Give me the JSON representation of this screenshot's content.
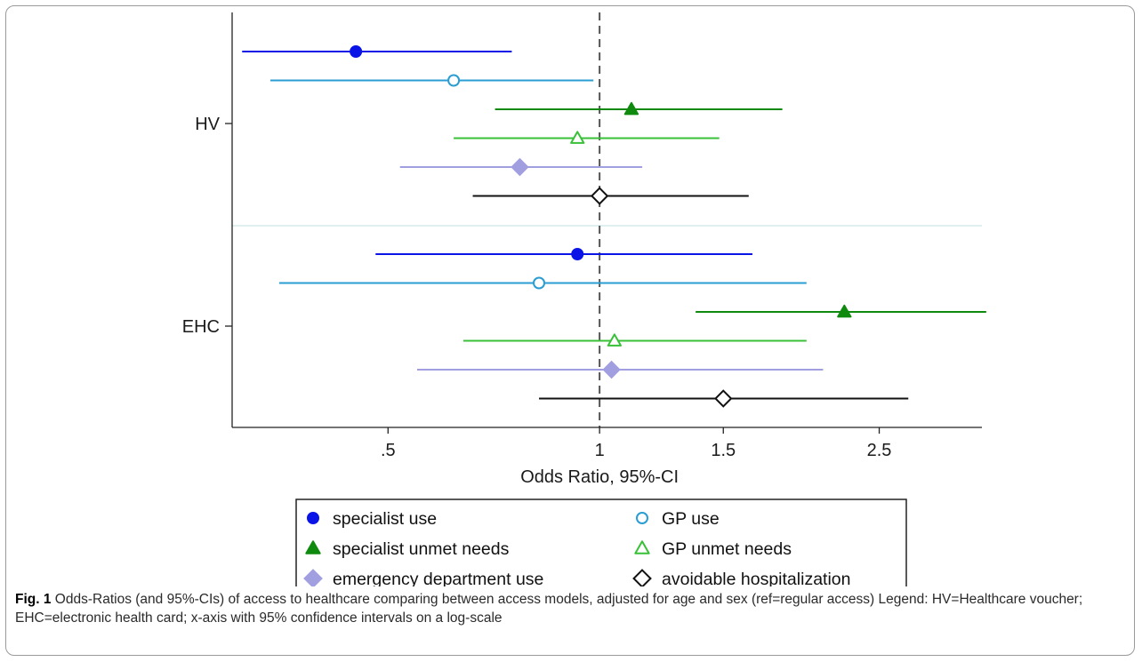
{
  "chart_data": {
    "type": "forest",
    "xlabel": "Odds Ratio, 95%-CI",
    "x_scale": "log",
    "x_ticks": [
      0.5,
      1,
      1.5,
      2.5
    ],
    "x_tick_labels": [
      ".5",
      "1",
      "1.5",
      "2.5"
    ],
    "xlim": [
      0.3,
      3.5
    ],
    "reference_line": 1,
    "groups": [
      "HV",
      "EHC"
    ],
    "series": [
      {
        "name": "specialist use",
        "color": "#0a14e6",
        "marker": "circle-filled",
        "points": [
          {
            "group": "HV",
            "or": 0.45,
            "lo": 0.31,
            "hi": 0.75
          },
          {
            "group": "EHC",
            "or": 0.93,
            "lo": 0.48,
            "hi": 1.65
          }
        ]
      },
      {
        "name": "GP use",
        "color": "#2a9dd2",
        "marker": "circle-open",
        "points": [
          {
            "group": "HV",
            "or": 0.62,
            "lo": 0.34,
            "hi": 0.98
          },
          {
            "group": "EHC",
            "or": 0.82,
            "lo": 0.35,
            "hi": 1.97
          }
        ]
      },
      {
        "name": "specialist unmet needs",
        "color": "#0f8a0f",
        "marker": "triangle-filled",
        "points": [
          {
            "group": "HV",
            "or": 1.11,
            "lo": 0.71,
            "hi": 1.82
          },
          {
            "group": "EHC",
            "or": 2.23,
            "lo": 1.37,
            "hi": 3.55
          }
        ]
      },
      {
        "name": "GP unmet needs",
        "color": "#38c038",
        "marker": "triangle-open",
        "points": [
          {
            "group": "HV",
            "or": 0.93,
            "lo": 0.62,
            "hi": 1.48
          },
          {
            "group": "EHC",
            "or": 1.05,
            "lo": 0.64,
            "hi": 1.97
          }
        ]
      },
      {
        "name": "emergency department use",
        "color": "#a29fe0",
        "marker": "diamond-filled",
        "points": [
          {
            "group": "HV",
            "or": 0.77,
            "lo": 0.52,
            "hi": 1.15
          },
          {
            "group": "EHC",
            "or": 1.04,
            "lo": 0.55,
            "hi": 2.08
          }
        ]
      },
      {
        "name": "avoidable hospitalization",
        "color": "#111111",
        "marker": "diamond-open",
        "points": [
          {
            "group": "HV",
            "or": 1.0,
            "lo": 0.66,
            "hi": 1.63
          },
          {
            "group": "EHC",
            "or": 1.5,
            "lo": 0.82,
            "hi": 2.75
          }
        ]
      }
    ]
  },
  "caption": {
    "label": "Fig. 1",
    "text": "Odds-Ratios (and 95%-CIs) of access to healthcare comparing between access models, adjusted for age and sex (ref=regular access) Legend: HV=Healthcare voucher; EHC=electronic health card; x-axis with 95% confidence intervals on a log-scale"
  }
}
